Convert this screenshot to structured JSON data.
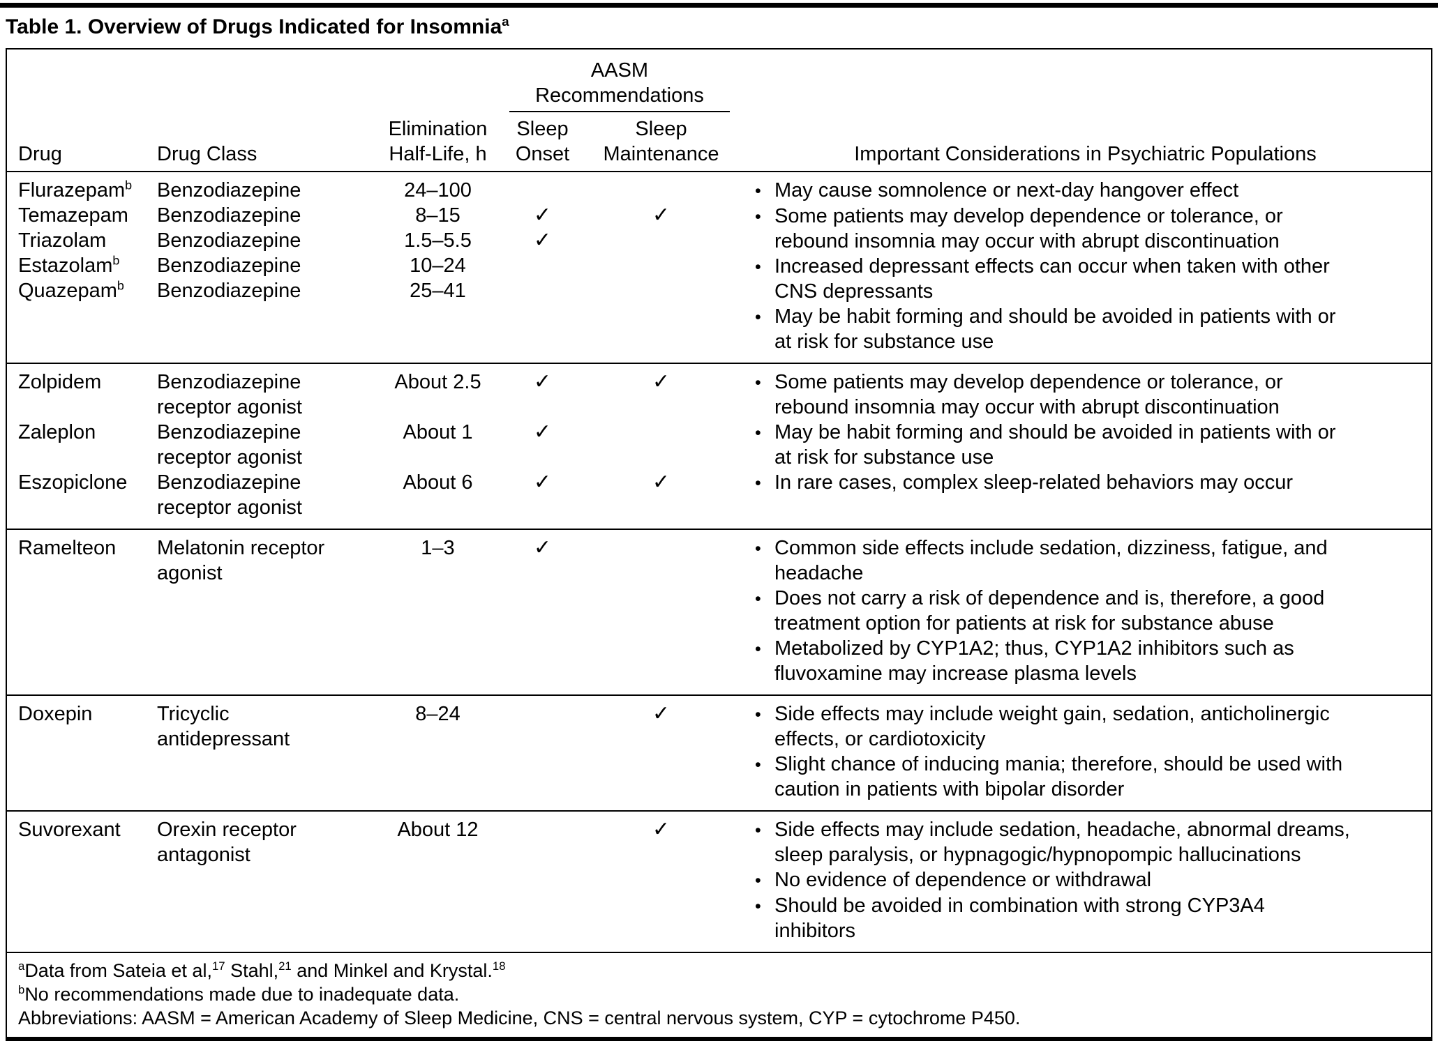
{
  "title": {
    "text": "Table 1. Overview of Drugs Indicated for Insomnia",
    "sup": "a"
  },
  "glyphs": {
    "bullet": "•",
    "checkmark": "✓"
  },
  "colors": {
    "text": "#000000",
    "rule": "#000000",
    "background": "#ffffff"
  },
  "header": {
    "drug": "Drug",
    "drug_class": "Drug Class",
    "half_life": "Elimination\nHalf-Life, h",
    "aasm": "AASM\nRecommendations",
    "sleep_onset": "Sleep\nOnset",
    "sleep_maintenance": "Sleep\nMaintenance",
    "considerations": "Important Considerations in Psychiatric Populations"
  },
  "groups": [
    {
      "drugs": [
        {
          "name": "Flurazepam",
          "sup": "b",
          "drug_class": "Benzodiazepine",
          "half_life": "24–100",
          "onset": "",
          "maintenance": ""
        },
        {
          "name": "Temazepam",
          "sup": "",
          "drug_class": "Benzodiazepine",
          "half_life": "8–15",
          "onset": "✓",
          "maintenance": "✓"
        },
        {
          "name": "Triazolam",
          "sup": "",
          "drug_class": "Benzodiazepine",
          "half_life": "1.5–5.5",
          "onset": "✓",
          "maintenance": ""
        },
        {
          "name": "Estazolam",
          "sup": "b",
          "drug_class": "Benzodiazepine",
          "half_life": "10–24",
          "onset": "",
          "maintenance": ""
        },
        {
          "name": "Quazepam",
          "sup": "b",
          "drug_class": "Benzodiazepine",
          "half_life": "25–41",
          "onset": "",
          "maintenance": ""
        }
      ],
      "considerations": [
        "May cause somnolence or next-day hangover effect",
        "Some patients may develop dependence or tolerance, or\nrebound insomnia may occur with abrupt discontinuation",
        "Increased depressant effects can occur when taken with other\nCNS depressants",
        "May be habit forming and should be avoided in patients with or\nat risk for substance use"
      ]
    },
    {
      "drugs": [
        {
          "name": "Zolpidem",
          "sup": "",
          "drug_class": "Benzodiazepine\nreceptor agonist",
          "half_life": "About 2.5",
          "onset": "✓",
          "maintenance": "✓"
        },
        {
          "name": "Zaleplon",
          "sup": "",
          "drug_class": "Benzodiazepine\nreceptor agonist",
          "half_life": "About 1",
          "onset": "✓",
          "maintenance": ""
        },
        {
          "name": "Eszopiclone",
          "sup": "",
          "drug_class": "Benzodiazepine\nreceptor agonist",
          "half_life": "About 6",
          "onset": "✓",
          "maintenance": "✓"
        }
      ],
      "considerations": [
        "Some patients may develop dependence or tolerance, or\nrebound insomnia may occur with abrupt discontinuation",
        "May be habit forming and should be avoided in patients with or\nat risk for substance use",
        "In rare cases, complex sleep-related behaviors may occur"
      ]
    },
    {
      "drugs": [
        {
          "name": "Ramelteon",
          "sup": "",
          "drug_class": "Melatonin receptor\nagonist",
          "half_life": "1–3",
          "onset": "✓",
          "maintenance": ""
        }
      ],
      "considerations": [
        "Common side effects include sedation, dizziness, fatigue, and\nheadache",
        "Does not carry a risk of dependence and is, therefore, a good\ntreatment option for patients at risk for substance abuse",
        "Metabolized by CYP1A2; thus, CYP1A2 inhibitors such as\nfluvoxamine may increase plasma levels"
      ]
    },
    {
      "drugs": [
        {
          "name": "Doxepin",
          "sup": "",
          "drug_class": "Tricyclic\nantidepressant",
          "half_life": "8–24",
          "onset": "",
          "maintenance": "✓"
        }
      ],
      "considerations": [
        "Side effects may include weight gain, sedation, anticholinergic\neffects, or cardiotoxicity",
        "Slight chance of inducing mania; therefore, should be used with\ncaution in patients with bipolar disorder"
      ]
    },
    {
      "drugs": [
        {
          "name": "Suvorexant",
          "sup": "",
          "drug_class": "Orexin receptor\nantagonist",
          "half_life": "About 12",
          "onset": "",
          "maintenance": "✓"
        }
      ],
      "considerations": [
        "Side effects may include sedation, headache, abnormal dreams,\nsleep paralysis, or hypnagogic/hypnopompic hallucinations",
        "No evidence of dependence or withdrawal",
        "Should be avoided in combination with strong CYP3A4\ninhibitors"
      ]
    }
  ],
  "footnotes": {
    "a": {
      "sup": "a",
      "t1": "Data from Sateia et al,",
      "s1": "17",
      "t2": " Stahl,",
      "s2": "21",
      "t3": " and Minkel and Krystal.",
      "s3": "18"
    },
    "b": {
      "sup": "b",
      "text": "No recommendations made due to inadequate data."
    },
    "abbreviations": "Abbreviations: AASM = American Academy of Sleep Medicine, CNS = central nervous system, CYP = cytochrome P450."
  }
}
